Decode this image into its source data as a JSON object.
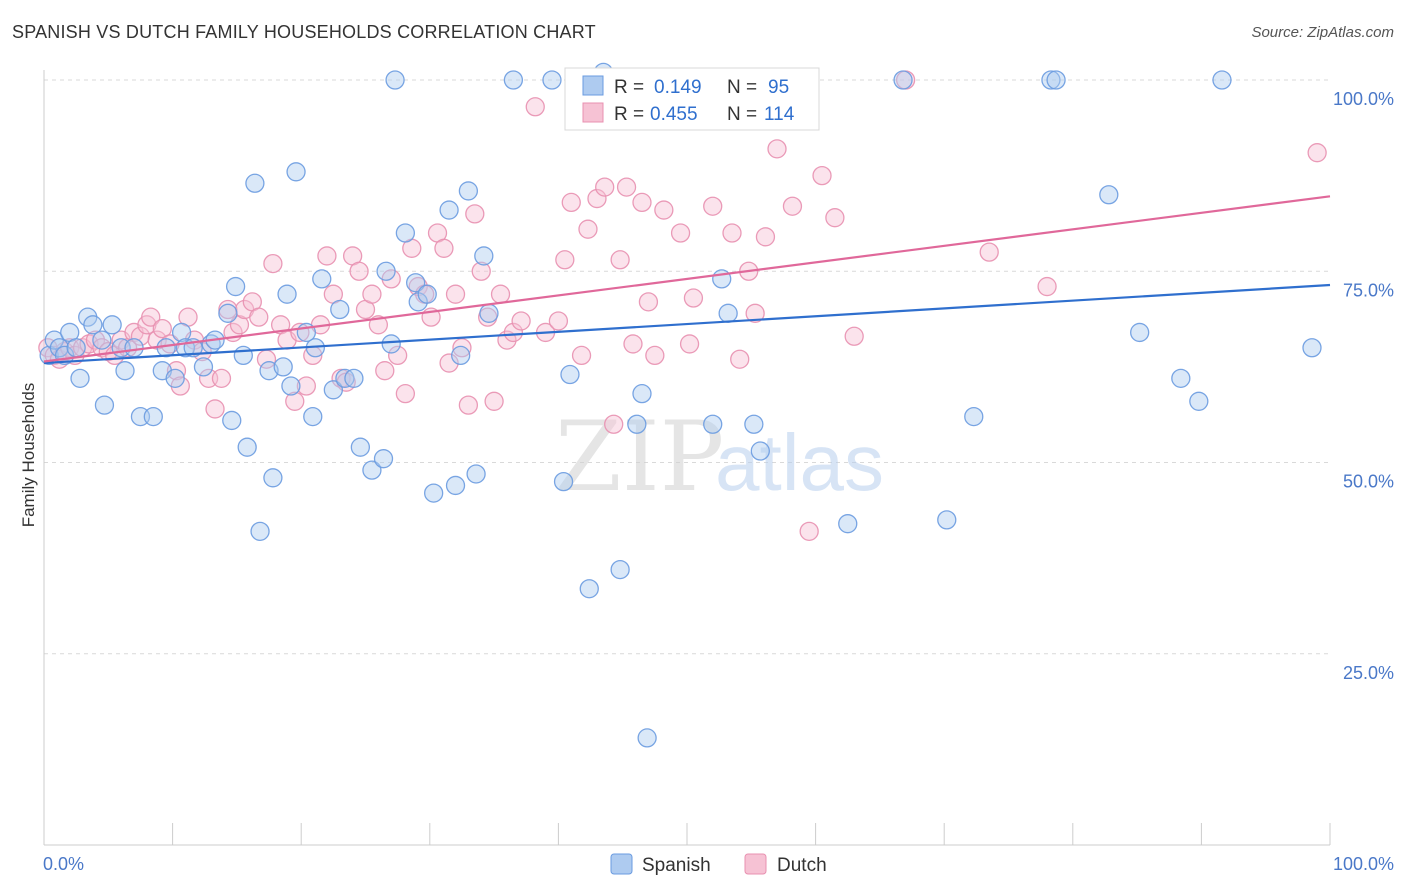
{
  "header": {
    "title": "SPANISH VS DUTCH FAMILY HOUSEHOLDS CORRELATION CHART",
    "source": "Source: ZipAtlas.com"
  },
  "watermark": {
    "zip": "ZIP",
    "atlas": "atlas"
  },
  "chart_data": {
    "type": "scatter",
    "ylabel": "Family Households",
    "xlim": [
      0,
      100
    ],
    "ylim": [
      0,
      102
    ],
    "x_tick_labels": {
      "left": "0.0%",
      "right": "100.0%"
    },
    "y_ticks": [
      {
        "value": 100,
        "label": "100.0%"
      },
      {
        "value": 75,
        "label": "75.0%"
      },
      {
        "value": 50,
        "label": "50.0%"
      },
      {
        "value": 25,
        "label": "25.0%"
      }
    ],
    "grid": true,
    "legend_position": "bottom-center",
    "stats_box": {
      "rows": [
        {
          "r_label": "R =",
          "r_value": "0.149",
          "n_label": "N =",
          "n_value": "95"
        },
        {
          "r_label": "R =",
          "r_value": "0.455",
          "n_label": "N =",
          "n_value": "114"
        }
      ]
    },
    "series": [
      {
        "name": "Spanish",
        "color": "#6a9be0",
        "fill": "#aecbf0",
        "trend": {
          "x": [
            0,
            100
          ],
          "y": [
            63.0,
            73.2
          ],
          "color": "#2f6fce"
        },
        "points": [
          [
            0.4,
            64
          ],
          [
            0.8,
            66
          ],
          [
            1.2,
            65
          ],
          [
            1.6,
            64
          ],
          [
            2,
            67
          ],
          [
            2.5,
            65
          ],
          [
            2.8,
            61
          ],
          [
            3.4,
            69
          ],
          [
            3.8,
            68
          ],
          [
            4.5,
            66
          ],
          [
            4.7,
            57.5
          ],
          [
            5.3,
            68
          ],
          [
            6,
            65
          ],
          [
            6.3,
            62
          ],
          [
            7.5,
            56
          ],
          [
            8.5,
            56
          ],
          [
            7,
            65
          ],
          [
            9.2,
            62
          ],
          [
            9.5,
            65
          ],
          [
            10.2,
            61
          ],
          [
            10.7,
            67
          ],
          [
            11,
            65
          ],
          [
            11.6,
            65
          ],
          [
            12.4,
            62.5
          ],
          [
            13,
            65.5
          ],
          [
            13.3,
            66
          ],
          [
            14.3,
            69.5
          ],
          [
            14.6,
            55.5
          ],
          [
            14.9,
            73
          ],
          [
            15.5,
            64
          ],
          [
            15.8,
            52
          ],
          [
            16.4,
            86.5
          ],
          [
            16.8,
            41
          ],
          [
            17.5,
            62
          ],
          [
            17.8,
            48
          ],
          [
            18.6,
            62.5
          ],
          [
            18.9,
            72
          ],
          [
            19.2,
            60
          ],
          [
            19.6,
            88
          ],
          [
            20.4,
            67
          ],
          [
            20.9,
            56
          ],
          [
            21.1,
            65
          ],
          [
            21.6,
            74
          ],
          [
            22.5,
            59.5
          ],
          [
            23,
            70
          ],
          [
            23.4,
            61
          ],
          [
            24.1,
            61
          ],
          [
            24.6,
            52
          ],
          [
            25.5,
            49
          ],
          [
            26.4,
            50.5
          ],
          [
            26.6,
            75
          ],
          [
            27,
            65.5
          ],
          [
            27.3,
            100
          ],
          [
            28.1,
            80
          ],
          [
            28.9,
            73.5
          ],
          [
            29.1,
            71
          ],
          [
            29.8,
            72
          ],
          [
            30.3,
            46
          ],
          [
            31.5,
            83
          ],
          [
            32,
            47
          ],
          [
            32.4,
            64
          ],
          [
            33,
            85.5
          ],
          [
            33.6,
            48.5
          ],
          [
            34.2,
            77
          ],
          [
            34.6,
            69.5
          ],
          [
            36.5,
            100
          ],
          [
            39.5,
            100
          ],
          [
            40.4,
            47.5
          ],
          [
            40.9,
            61.5
          ],
          [
            41.8,
            100
          ],
          [
            42.4,
            33.5
          ],
          [
            43.5,
            101
          ],
          [
            44.8,
            36
          ],
          [
            46.1,
            55
          ],
          [
            46.5,
            59
          ],
          [
            46.9,
            14
          ],
          [
            52,
            55
          ],
          [
            52.7,
            74
          ],
          [
            53.2,
            69.5
          ],
          [
            55.2,
            55
          ],
          [
            55.7,
            51.5
          ],
          [
            62.5,
            42
          ],
          [
            66.8,
            100
          ],
          [
            70.2,
            42.5
          ],
          [
            72.3,
            56
          ],
          [
            78.3,
            100
          ],
          [
            78.7,
            100
          ],
          [
            82.8,
            85
          ],
          [
            85.2,
            67
          ],
          [
            88.4,
            61
          ],
          [
            89.8,
            58
          ],
          [
            91.6,
            100
          ],
          [
            98.6,
            65
          ]
        ]
      },
      {
        "name": "Dutch",
        "color": "#e890b0",
        "fill": "#f6c2d4",
        "trend": {
          "x": [
            0,
            100
          ],
          "y": [
            63.2,
            84.8
          ],
          "color": "#e0689a"
        },
        "points": [
          [
            0.3,
            65
          ],
          [
            0.8,
            64
          ],
          [
            1.2,
            63.5
          ],
          [
            1.6,
            64.5
          ],
          [
            2,
            65
          ],
          [
            2.4,
            64
          ],
          [
            3,
            65
          ],
          [
            3.5,
            65.5
          ],
          [
            4,
            66
          ],
          [
            4.5,
            65
          ],
          [
            5,
            64.5
          ],
          [
            5.5,
            64
          ],
          [
            6,
            66
          ],
          [
            6.5,
            65
          ],
          [
            7,
            67
          ],
          [
            7.5,
            66.5
          ],
          [
            8,
            68
          ],
          [
            8.3,
            69
          ],
          [
            8.8,
            66
          ],
          [
            9.2,
            67.5
          ],
          [
            9.8,
            65.5
          ],
          [
            10.3,
            62
          ],
          [
            10.6,
            60
          ],
          [
            11.2,
            69
          ],
          [
            11.7,
            66
          ],
          [
            12.3,
            64.5
          ],
          [
            12.8,
            61
          ],
          [
            13.3,
            57
          ],
          [
            13.8,
            61
          ],
          [
            14.3,
            70
          ],
          [
            14.7,
            67
          ],
          [
            15.2,
            68
          ],
          [
            15.6,
            70
          ],
          [
            16.2,
            71
          ],
          [
            16.7,
            69
          ],
          [
            17.3,
            63.5
          ],
          [
            17.8,
            76
          ],
          [
            18.4,
            68
          ],
          [
            18.9,
            66
          ],
          [
            19.5,
            58
          ],
          [
            19.9,
            67
          ],
          [
            20.4,
            60
          ],
          [
            20.9,
            64
          ],
          [
            21.5,
            68
          ],
          [
            22,
            77
          ],
          [
            22.5,
            72
          ],
          [
            23.1,
            61
          ],
          [
            23.5,
            60.5
          ],
          [
            24,
            77
          ],
          [
            24.5,
            75
          ],
          [
            25,
            70
          ],
          [
            25.5,
            72
          ],
          [
            26,
            68
          ],
          [
            26.5,
            62
          ],
          [
            27,
            74
          ],
          [
            27.5,
            64
          ],
          [
            28.1,
            59
          ],
          [
            28.6,
            78
          ],
          [
            29.1,
            73
          ],
          [
            29.6,
            72
          ],
          [
            30.1,
            69
          ],
          [
            30.6,
            80
          ],
          [
            31.1,
            78
          ],
          [
            31.5,
            63
          ],
          [
            32,
            72
          ],
          [
            32.5,
            65
          ],
          [
            33,
            57.5
          ],
          [
            33.5,
            82.5
          ],
          [
            34,
            75
          ],
          [
            34.5,
            69
          ],
          [
            35,
            58
          ],
          [
            35.5,
            72
          ],
          [
            36,
            66
          ],
          [
            36.5,
            67
          ],
          [
            37.1,
            68.5
          ],
          [
            38.2,
            96.5
          ],
          [
            39,
            67
          ],
          [
            40,
            68.5
          ],
          [
            40.5,
            76.5
          ],
          [
            41,
            84
          ],
          [
            41.8,
            64
          ],
          [
            42.3,
            80.5
          ],
          [
            43,
            84.5
          ],
          [
            43.6,
            86
          ],
          [
            44.3,
            55
          ],
          [
            44.8,
            76.5
          ],
          [
            45.3,
            86
          ],
          [
            45.8,
            65.5
          ],
          [
            46.5,
            84
          ],
          [
            47,
            71
          ],
          [
            47.5,
            64
          ],
          [
            48.2,
            83
          ],
          [
            49.5,
            80
          ],
          [
            50.2,
            65.5
          ],
          [
            50.5,
            71.5
          ],
          [
            52,
            83.5
          ],
          [
            53.5,
            80
          ],
          [
            54.1,
            63.5
          ],
          [
            54.8,
            75
          ],
          [
            55.3,
            69.5
          ],
          [
            56.1,
            79.5
          ],
          [
            57,
            91
          ],
          [
            58.2,
            83.5
          ],
          [
            59.5,
            41
          ],
          [
            60.5,
            87.5
          ],
          [
            61.5,
            82
          ],
          [
            63,
            66.5
          ],
          [
            67,
            100
          ],
          [
            73.5,
            77.5
          ],
          [
            78,
            73
          ],
          [
            99,
            90.5
          ]
        ]
      }
    ]
  }
}
